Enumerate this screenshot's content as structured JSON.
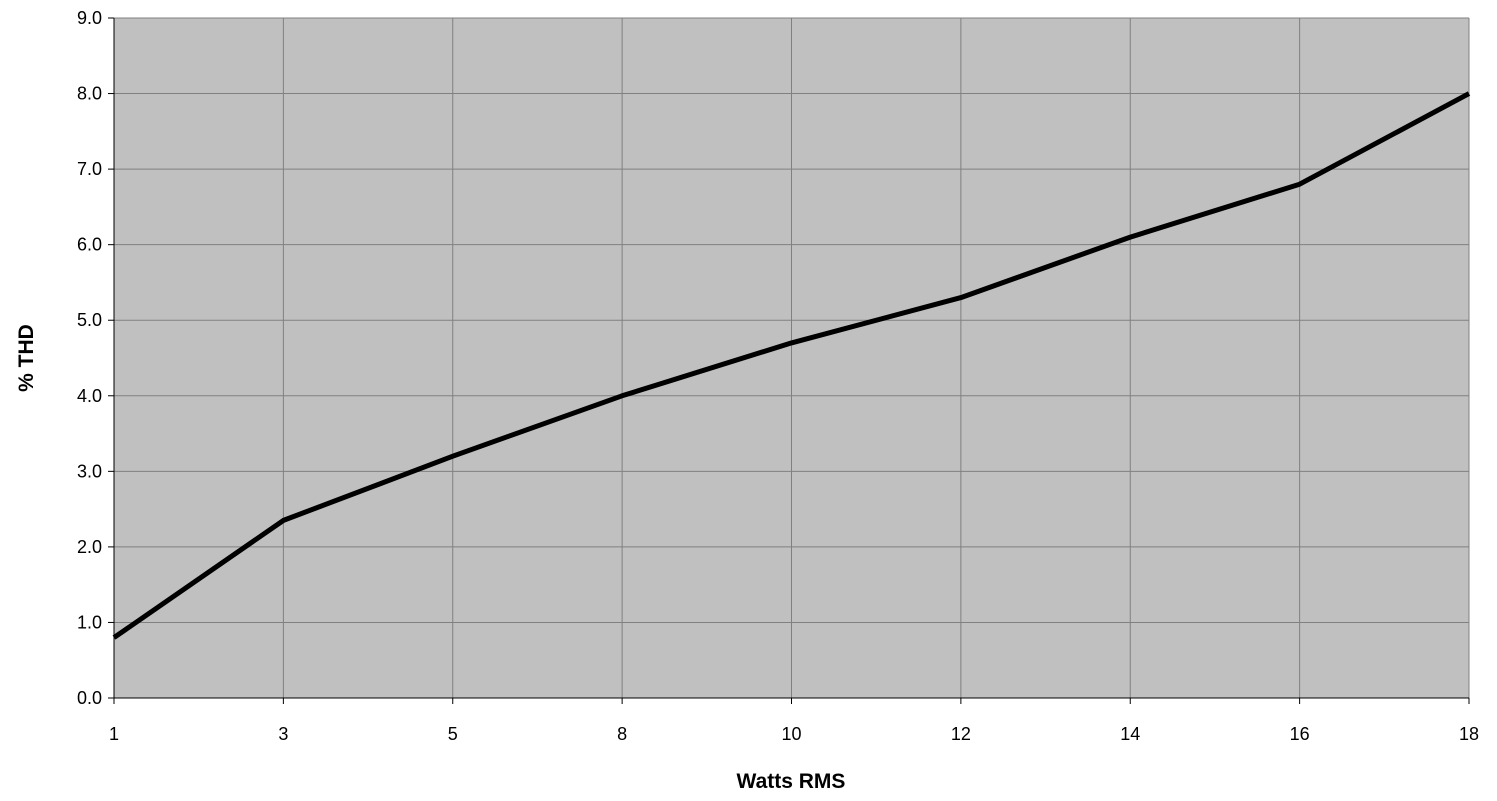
{
  "chart_data": {
    "type": "line",
    "xlabel": "Watts RMS",
    "ylabel": "% THD",
    "categories": [
      "1",
      "3",
      "5",
      "8",
      "10",
      "12",
      "14",
      "16",
      "18"
    ],
    "y_ticks": [
      "0.0",
      "1.0",
      "2.0",
      "3.0",
      "4.0",
      "5.0",
      "6.0",
      "7.0",
      "8.0",
      "9.0"
    ],
    "ylim": [
      0,
      9
    ],
    "grid": true,
    "legend": "none",
    "series": [
      {
        "values": [
          0.8,
          2.35,
          3.2,
          4.0,
          4.7,
          5.3,
          6.1,
          6.8,
          8.0
        ]
      }
    ],
    "colors": {
      "plot_background": "#c0c0c0",
      "grid": "#808080",
      "line": "#000000"
    }
  }
}
